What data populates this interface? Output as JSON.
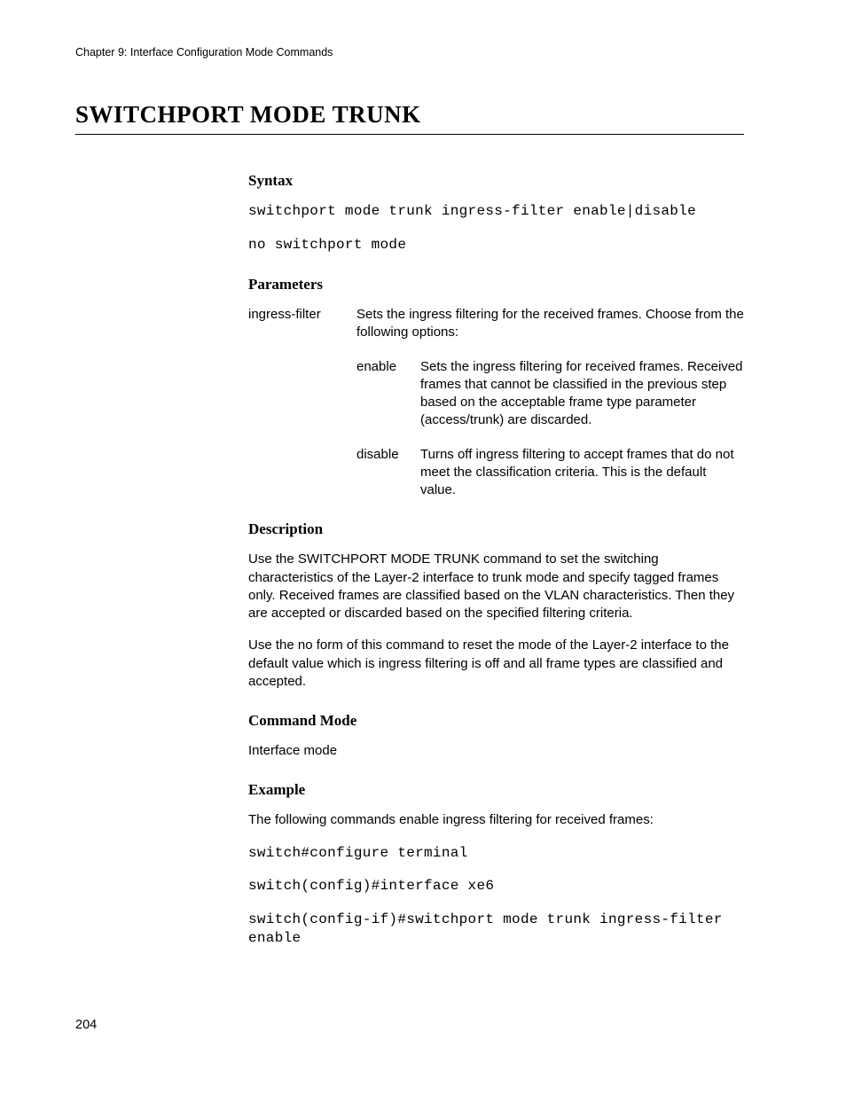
{
  "header": {
    "chapter": "Chapter 9: Interface Configuration Mode Commands"
  },
  "title": "SWITCHPORT MODE TRUNK",
  "sections": {
    "syntax": {
      "heading": "Syntax",
      "line1": "switchport mode trunk ingress-filter enable|disable",
      "line2": "no switchport mode"
    },
    "parameters": {
      "heading": "Parameters",
      "p1_term": "ingress-filter",
      "p1_def": "Sets the ingress filtering for the received frames. Choose from the following options:",
      "opt1_term": "enable",
      "opt1_def": "Sets the ingress filtering for received frames. Received frames that cannot be classified in the previous step based on the acceptable frame type parameter (access/trunk) are discarded.",
      "opt2_term": "disable",
      "opt2_def": "Turns off ingress filtering to accept frames that do not meet the classification criteria. This is the default value."
    },
    "description": {
      "heading": "Description",
      "para1": "Use the SWITCHPORT MODE TRUNK command to set the switching characteristics of the Layer-2 interface to trunk mode and specify tagged frames only. Received frames are classified based on the VLAN characteristics. Then they are accepted or discarded based on the specified filtering criteria.",
      "para2": "Use the no form of this command to reset the mode of the Layer-2 interface to the default value which is ingress filtering is off and all frame types are classified and accepted."
    },
    "command_mode": {
      "heading": "Command Mode",
      "text": "Interface mode"
    },
    "example": {
      "heading": "Example",
      "intro": "The following commands enable ingress filtering for received frames:",
      "cmd1": "switch#configure terminal",
      "cmd2": "switch(config)#interface xe6",
      "cmd3": "switch(config-if)#switchport mode trunk ingress-filter enable"
    }
  },
  "page_number": "204"
}
